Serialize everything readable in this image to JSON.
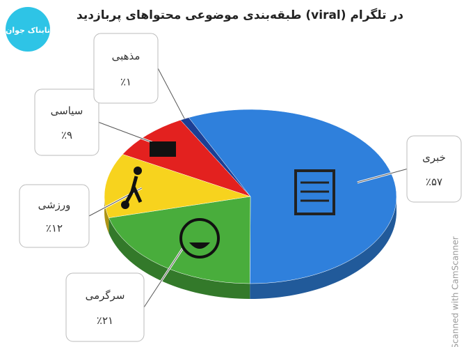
{
  "logo": "تابناک جوان",
  "watermark": "Scanned with CamScanner",
  "chart_data": {
    "type": "pie",
    "title": "طبقه‌بندی موضوعی محتواهای پربازدید (viral) در تلگرام",
    "categories": [
      "خبری",
      "سرگرمی",
      "ورزشی",
      "سیاسی",
      "مذهبی"
    ],
    "values": [
      57,
      21,
      12,
      9,
      1
    ],
    "value_labels": [
      "٪۵۷",
      "٪۲۱",
      "٪۱۲",
      "٪۹",
      "٪۱"
    ],
    "colors": [
      "#2f80dc",
      "#49ad3c",
      "#f7d31e",
      "#e3211f",
      "#1d3f93"
    ]
  }
}
